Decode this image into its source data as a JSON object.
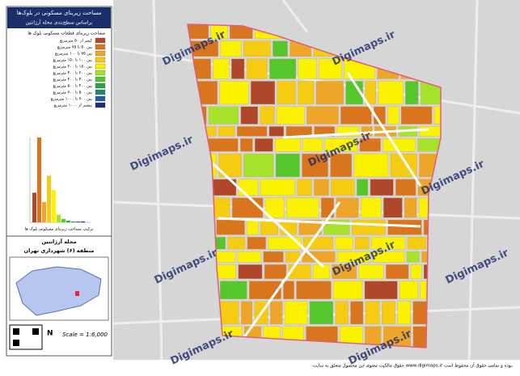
{
  "header": {
    "title": "مساحت زیربنای مسکونی در بلوک‌ها",
    "subtitle": "براساس سطح‌بندی محله آرژانتین"
  },
  "legend": {
    "title": "مساحت زیربنای قطعات مسکونی بلوک ها",
    "items": [
      {
        "label": "کمتر از ۵۰ مترمربع",
        "color": "#b0472a"
      },
      {
        "label": "بین ۵۰ تا ۷۵ مترمربع",
        "color": "#d9741f"
      },
      {
        "label": "بین ۷۵ تا ۱۰۰ مترمربع",
        "color": "#eda52a"
      },
      {
        "label": "بین ۱۰۰ تا ۱۵۰ مترمربع",
        "color": "#f5cc12"
      },
      {
        "label": "بین ۱۵۰ تا ۲۰۰ مترمربع",
        "color": "#fbf200"
      },
      {
        "label": "بین ۲۰۰ تا ۳۰۰ مترمربع",
        "color": "#a6e22c"
      },
      {
        "label": "بین ۳۰۰ تا ۴۰۰ مترمربع",
        "color": "#56c62d"
      },
      {
        "label": "بین ۴۰۰ تا ۵۰۰ مترمربع",
        "color": "#2ea34a"
      },
      {
        "label": "بین ۵۰۰ تا ۷۰۰ مترمربع",
        "color": "#1e8a70"
      },
      {
        "label": "بین ۷۰۰ تا ۱۰۰۰ مترمربع",
        "color": "#1f5fa8"
      },
      {
        "label": "بیشتر از ۱۰۰۰ مترمربع",
        "color": "#1b2f78"
      }
    ]
  },
  "chart_data": {
    "type": "bar",
    "title": "ترکیب مساحت زیربنای مسکونی بلوک ها",
    "values": [
      35,
      100,
      24,
      55,
      38,
      9,
      4,
      2,
      1,
      1,
      1
    ],
    "ylim": [
      0,
      100
    ]
  },
  "place": {
    "neighborhood": "محله آرژانتین",
    "district": "منطقه (۶) شهرداری تهران"
  },
  "scale": "Scale = 1:6,000",
  "north": "N",
  "watermark": "Digimaps.ir",
  "footer": "حقوق مالکیت معنوی این محصول متعلق به سایت www.digimaps.ir بوده و تمامی حقوق آن محفوظ است."
}
